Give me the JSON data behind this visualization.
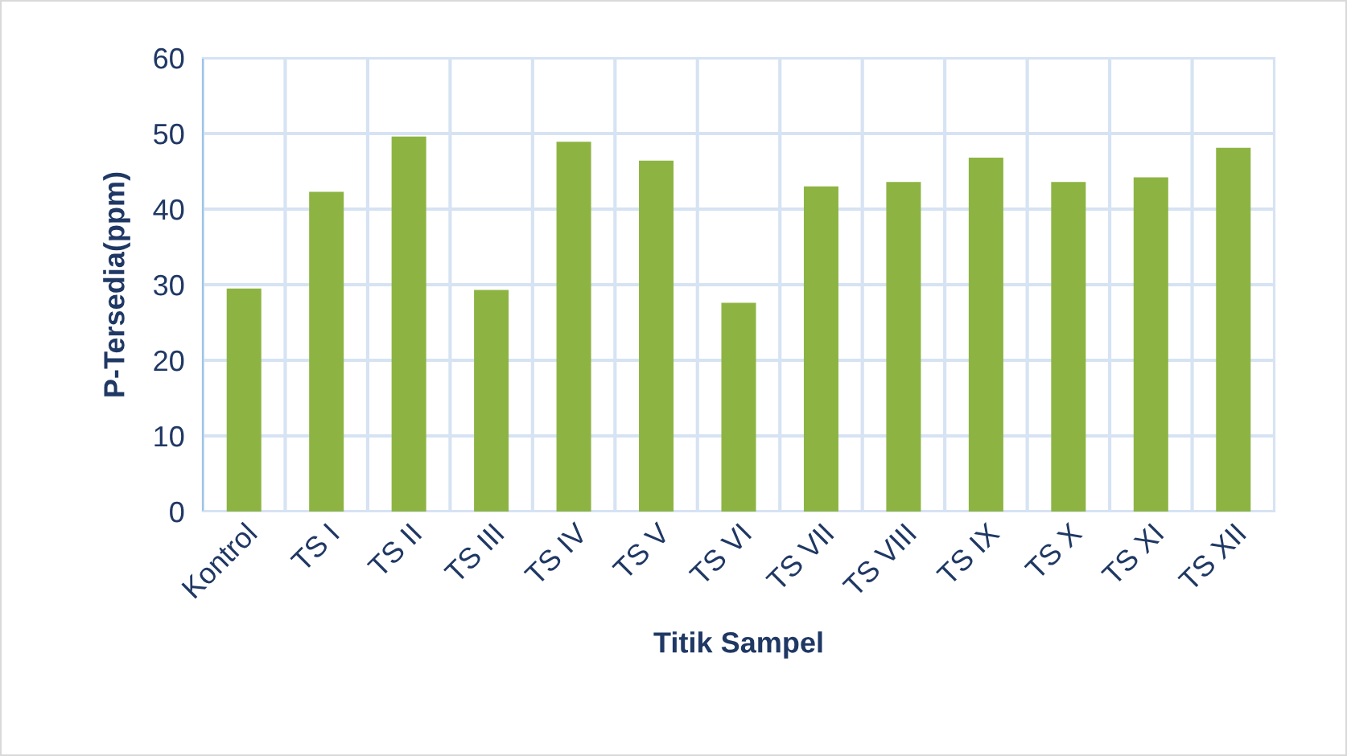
{
  "chart_data": {
    "type": "bar",
    "xlabel": "Titik Sampel",
    "ylabel": "P-Tersedia(ppm)",
    "categories": [
      "Kontrol",
      "TS I",
      "TS II",
      "TS III",
      "TS IV",
      "TS V",
      "TS VI",
      "TS VII",
      "TS VIII",
      "TS IX",
      "TS X",
      "TS XI",
      "TS XII"
    ],
    "values": [
      29.5,
      42.3,
      49.6,
      29.3,
      48.9,
      46.4,
      27.6,
      43.0,
      43.6,
      46.8,
      43.6,
      44.2,
      48.1
    ],
    "color": "#8db443",
    "ylim": [
      0,
      60
    ],
    "yticks": [
      0,
      10,
      20,
      30,
      40,
      50,
      60
    ],
    "grid": true
  }
}
